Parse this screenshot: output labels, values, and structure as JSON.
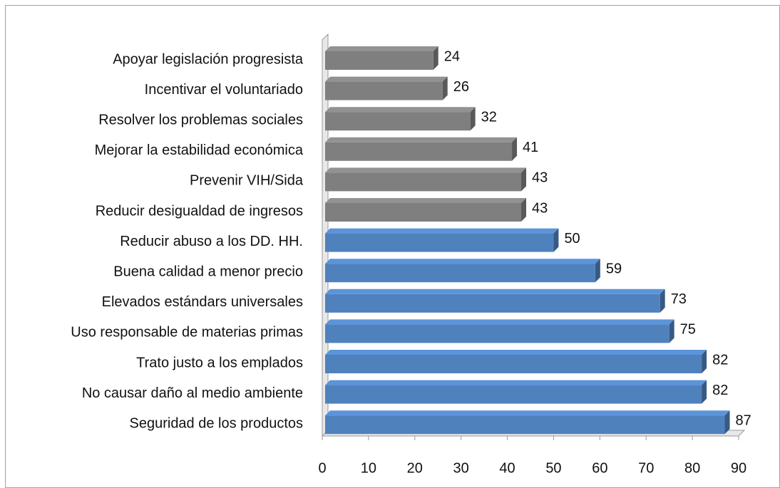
{
  "chart_data": {
    "type": "bar",
    "orientation": "horizontal",
    "categories": [
      "Apoyar legislación progresista",
      "Incentivar el voluntariado",
      "Resolver los problemas sociales",
      "Mejorar la estabilidad económica",
      "Prevenir VIH/Sida",
      "Reducir desigualdad de ingresos",
      "Reducir abuso a los DD. HH.",
      "Buena calidad a menor precio",
      "Elevados estándars universales",
      "Uso responsable de materias primas",
      "Trato justo a los emplados",
      "No causar daño al medio ambiente",
      "Seguridad de los productos"
    ],
    "values": [
      24,
      26,
      32,
      41,
      43,
      43,
      50,
      59,
      73,
      75,
      82,
      82,
      87
    ],
    "colors": [
      "#7f7f7f",
      "#7f7f7f",
      "#7f7f7f",
      "#7f7f7f",
      "#7f7f7f",
      "#7f7f7f",
      "#4f81bd",
      "#4f81bd",
      "#4f81bd",
      "#4f81bd",
      "#4f81bd",
      "#4f81bd",
      "#4f81bd"
    ],
    "xlim": [
      0,
      90
    ],
    "xticks": [
      0,
      10,
      20,
      30,
      40,
      50,
      60,
      70,
      80,
      90
    ]
  }
}
